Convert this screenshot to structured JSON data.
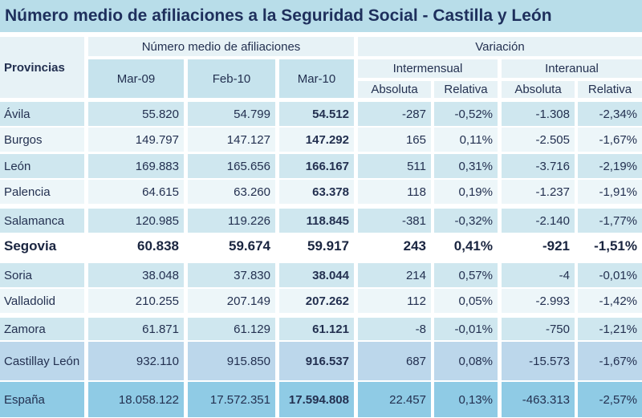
{
  "title": "Número medio de afiliaciones a la Seguridad Social - Castilla y León",
  "headers": {
    "provincias": "Provincias",
    "numero_medio": "Número medio de afiliaciones",
    "variacion": "Variación",
    "intermensual": "Intermensual",
    "interanual": "Interanual",
    "months": [
      "Mar-09",
      "Feb-10",
      "Mar-10"
    ],
    "sub": [
      "Absoluta",
      "Relativa",
      "Absoluta",
      "Relativa"
    ]
  },
  "rows": [
    {
      "province": [
        "Ávila"
      ],
      "values": [
        "55.820",
        "54.799",
        "54.512",
        "-287",
        "-0,52%",
        "-1.308",
        "-2,34%"
      ]
    },
    {
      "province": [
        "Burgos"
      ],
      "values": [
        "149.797",
        "147.127",
        "147.292",
        "165",
        "0,11%",
        "-2.505",
        "-1,67%"
      ]
    },
    {
      "province": [
        "León"
      ],
      "values": [
        "169.883",
        "165.656",
        "166.167",
        "511",
        "0,31%",
        "-3.716",
        "-2,19%"
      ]
    },
    {
      "province": [
        "Palencia"
      ],
      "values": [
        "64.615",
        "63.260",
        "63.378",
        "118",
        "0,19%",
        "-1.237",
        "-1,91%"
      ]
    },
    {
      "province": [
        "Salamanca"
      ],
      "values": [
        "120.985",
        "119.226",
        "118.845",
        "-381",
        "-0,32%",
        "-2.140",
        "-1,77%"
      ]
    },
    {
      "province": [
        "Segovia"
      ],
      "values": [
        "60.838",
        "59.674",
        "59.917",
        "243",
        "0,41%",
        "-921",
        "-1,51%"
      ]
    },
    {
      "province": [
        "Soria"
      ],
      "values": [
        "38.048",
        "37.830",
        "38.044",
        "214",
        "0,57%",
        "-4",
        "-0,01%"
      ]
    },
    {
      "province": [
        "Valladolid"
      ],
      "values": [
        "210.255",
        "207.149",
        "207.262",
        "112",
        "0,05%",
        "-2.993",
        "-1,42%"
      ]
    },
    {
      "province": [
        "Zamora"
      ],
      "values": [
        "61.871",
        "61.129",
        "61.121",
        "-8",
        "-0,01%",
        "-750",
        "-1,21%"
      ]
    },
    {
      "province": [
        "Castilla",
        "y León"
      ],
      "values": [
        "932.110",
        "915.850",
        "916.537",
        "687",
        "0,08%",
        "-15.573",
        "-1,67%"
      ]
    },
    {
      "province": [
        "España"
      ],
      "values": [
        "18.058.122",
        "17.572.351",
        "17.594.808",
        "22.457",
        "0,13%",
        "-463.313",
        "-2,57%"
      ]
    }
  ],
  "colors": {
    "title_bg": "#b8dde9",
    "title_text": "#1e2f5c",
    "header_bg": "#e7f2f6",
    "month_bg": "#c6e3ed",
    "row_dark": "#cfe7ef",
    "row_light": "#edf6f9",
    "total_bg": "#bcd7eb",
    "spain_bg": "#8fcbe5"
  }
}
